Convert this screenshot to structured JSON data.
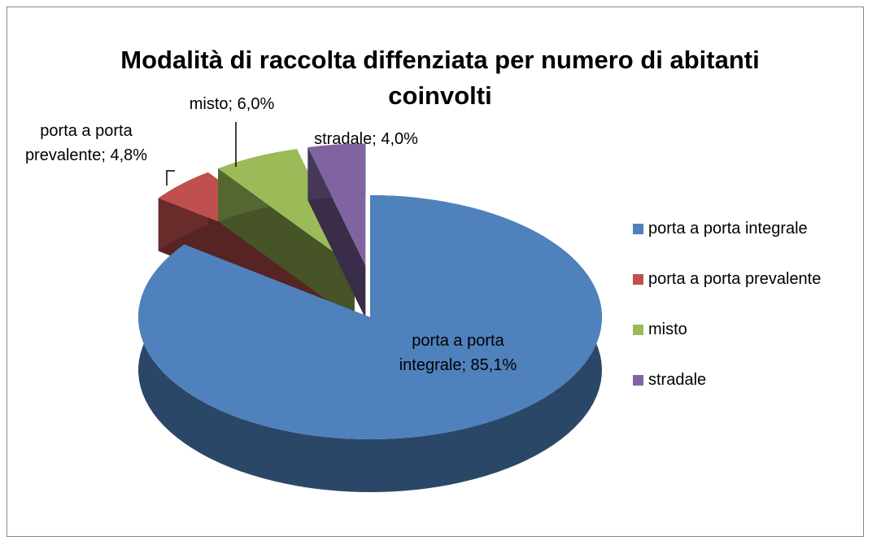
{
  "chart_data": {
    "type": "pie",
    "title": "Modalità di raccolta diffenziata per numero di abitanti coinvolti",
    "categories": [
      "porta a porta integrale",
      "porta a porta prevalente",
      "misto",
      "stradale"
    ],
    "values": [
      85.1,
      4.8,
      6.0,
      4.0
    ],
    "value_labels": [
      "porta a porta integrale; 85,1%",
      "porta a porta prevalente; 4,8%",
      "misto; 6,0%",
      "stradale; 4,0%"
    ],
    "colors": [
      "#4f81bd",
      "#c0504d",
      "#9bbb59",
      "#8064a2"
    ],
    "legend": "right"
  }
}
